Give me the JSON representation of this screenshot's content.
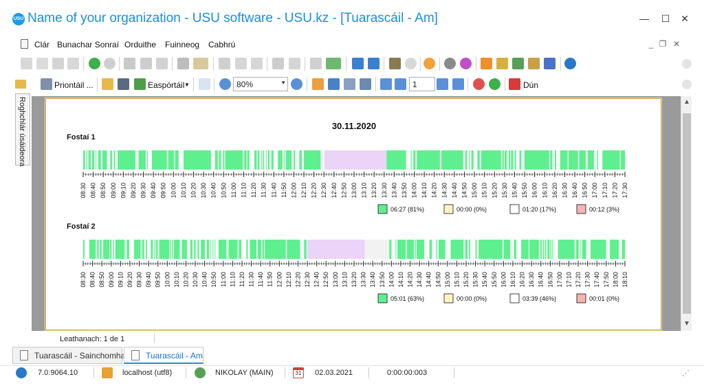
{
  "window": {
    "title": "Name of your organization - USU software - USU.kz - [Tuarascáil - Am]",
    "logo_text": "USU",
    "minimize": "—",
    "maximize": "☐",
    "close": "✕"
  },
  "menu": {
    "items": [
      "Clár",
      "Bunachar Sonraí",
      "Orduithe",
      "Fuinneog",
      "Cabhrú"
    ],
    "mdi_minimize": "_",
    "mdi_restore": "❐",
    "mdi_close": "✕"
  },
  "toolbar2": {
    "print_label": "Priontáil ...",
    "export_label": "Easpórtáil",
    "zoom_value": "80%",
    "page_value": "1",
    "close_label": "Dún"
  },
  "sidebar": {
    "tab_label": "Roghchlár úsáideora"
  },
  "report": {
    "date": "30.11.2020",
    "employees": [
      {
        "name": "Fostaí 1",
        "times": [
          "08:30",
          "08:40",
          "08:50",
          "09:00",
          "09:10",
          "09:20",
          "09:30",
          "09:40",
          "09:50",
          "10:00",
          "10:10",
          "10:20",
          "10:30",
          "10:40",
          "10:50",
          "11:00",
          "11:10",
          "11:20",
          "11:30",
          "11:40",
          "11:50",
          "12:00",
          "12:10",
          "12:20",
          "12:30",
          "12:40",
          "12:50",
          "13:00",
          "13:10",
          "13:20",
          "13:30",
          "13:40",
          "13:50",
          "14:00",
          "14:10",
          "14:20",
          "14:30",
          "14:40",
          "14:50",
          "15:00",
          "15:10",
          "15:20",
          "15:30",
          "15:40",
          "15:50",
          "16:00",
          "16:10",
          "16:20",
          "16:30",
          "16:40",
          "16:50",
          "17:00",
          "17:10",
          "17:20",
          "17:30"
        ],
        "legend": [
          {
            "value": "06:27 (81%)",
            "color": "#5ef08e"
          },
          {
            "value": "00:00 (0%)",
            "color": "#fdf6c0"
          },
          {
            "value": "01:20 (17%)",
            "color": "#ffffff"
          },
          {
            "value": "00:12 (3%)",
            "color": "#f7b4b4"
          }
        ]
      },
      {
        "name": "Fostaí 2",
        "times": [
          "08:30",
          "08:40",
          "08:50",
          "09:00",
          "09:10",
          "09:20",
          "09:30",
          "09:40",
          "09:50",
          "10:00",
          "10:10",
          "10:20",
          "10:30",
          "10:40",
          "10:50",
          "11:00",
          "11:10",
          "11:20",
          "11:30",
          "11:40",
          "11:50",
          "12:00",
          "12:10",
          "12:20",
          "12:30",
          "12:40",
          "12:50",
          "13:00",
          "13:10",
          "13:20",
          "13:30",
          "13:40",
          "13:50",
          "14:00",
          "14:10",
          "14:20",
          "14:30",
          "14:40",
          "14:50",
          "15:00",
          "15:10",
          "15:20",
          "15:30",
          "15:40",
          "15:50",
          "16:00",
          "16:10",
          "16:20",
          "16:30",
          "16:40",
          "16:50",
          "17:00",
          "17:10",
          "17:20",
          "17:30",
          "17:40",
          "17:50",
          "18:00",
          "18:10"
        ],
        "legend": [
          {
            "value": "05:01 (63%)",
            "color": "#5ef08e"
          },
          {
            "value": "00:00 (0%)",
            "color": "#fdf6c0"
          },
          {
            "value": "03:39 (46%)",
            "color": "#ffffff"
          },
          {
            "value": "00:01 (0%)",
            "color": "#f7b4b4"
          }
        ]
      }
    ],
    "colors": {
      "active": "#5ef08e",
      "break": "#ebd4f7",
      "idle": "#f7b4b4"
    }
  },
  "pager": {
    "label": "Leathanach: 1 de 1"
  },
  "tabs": [
    {
      "label": "Tuarascáil - Sainchomhad",
      "active": false
    },
    {
      "label": "Tuarascáil - Am",
      "active": true
    }
  ],
  "status": {
    "version": "7.0.9064.10",
    "db": "localhost (utf8)",
    "user": "NIKOLAY (MAIN)",
    "date": "02.03.2021",
    "timer": "0:00:00:003",
    "calendar_day": "31"
  }
}
